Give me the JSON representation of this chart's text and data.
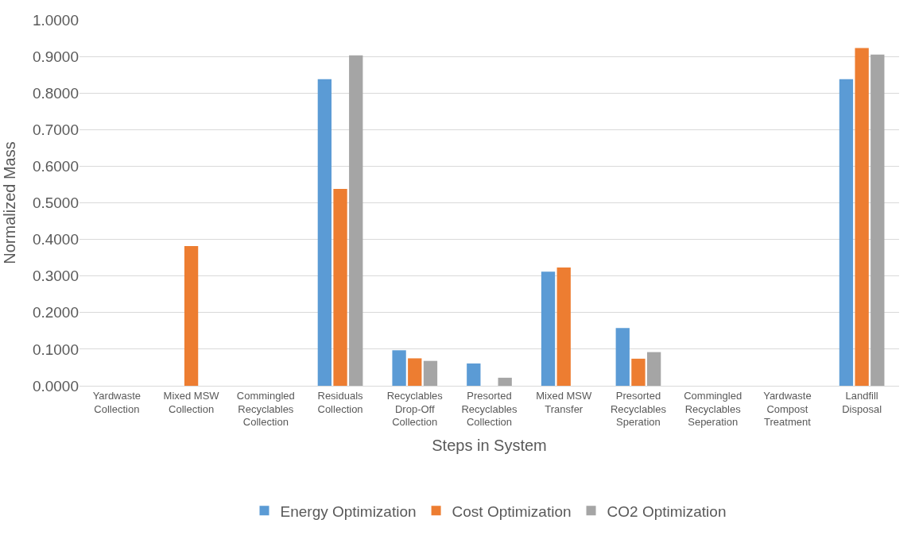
{
  "chart_data": {
    "type": "bar",
    "xlabel": "Steps in System",
    "ylabel": "Normalized Mass",
    "categories": [
      "Yardwaste Collection",
      "Mixed MSW Collection",
      "Commingled Recyclables Collection",
      "Residuals Collection",
      "Recyclables Drop-Off Collection",
      "Presorted Recyclables Collection",
      "Mixed MSW Transfer",
      "Presorted Recyclables Speration",
      "Commingled Recyclables Seperation",
      "Yardwaste Compost Treatment",
      "Landfill Disposal"
    ],
    "series": [
      {
        "name": "Energy Optimization",
        "color": "#5b9bd5",
        "values": [
          0,
          0,
          0,
          0.838,
          0.097,
          0.061,
          0.312,
          0.158,
          0,
          0,
          0.838
        ]
      },
      {
        "name": "Cost Optimization",
        "color": "#ed7d31",
        "values": [
          0,
          0.382,
          0,
          0.538,
          0.075,
          0,
          0.323,
          0.074,
          0,
          0,
          0.923
        ]
      },
      {
        "name": "CO2 Optimization",
        "color": "#a5a5a5",
        "values": [
          0,
          0,
          0,
          0.903,
          0.068,
          0.022,
          0,
          0.092,
          0,
          0,
          0.905
        ]
      }
    ],
    "ylim": [
      0,
      1
    ],
    "yticks": [
      {
        "value": 0,
        "label": "0.0000"
      },
      {
        "value": 0.1,
        "label": "0.1000"
      },
      {
        "value": 0.2,
        "label": "0.2000"
      },
      {
        "value": 0.3,
        "label": "0.3000"
      },
      {
        "value": 0.4,
        "label": "0.4000"
      },
      {
        "value": 0.5,
        "label": "0.5000"
      },
      {
        "value": 0.6,
        "label": "0.6000"
      },
      {
        "value": 0.7,
        "label": "0.7000"
      },
      {
        "value": 0.8,
        "label": "0.8000"
      },
      {
        "value": 0.9,
        "label": "0.9000"
      },
      {
        "value": 1,
        "label": "1.0000"
      }
    ],
    "grid": "y",
    "legend": "bottom"
  }
}
